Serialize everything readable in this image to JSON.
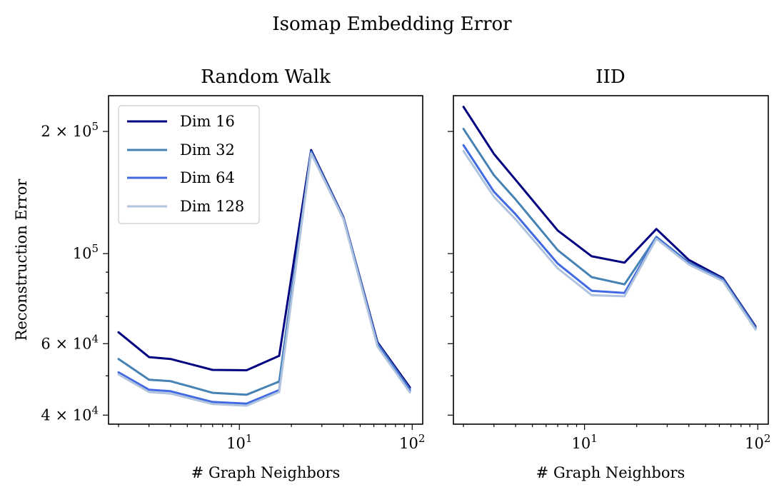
{
  "figure": {
    "title": "Isomap Embedding Error"
  },
  "chart_data": [
    {
      "type": "line",
      "title": "Random Walk",
      "xlabel": "# Graph Neighbors",
      "ylabel": "Reconstruction Error",
      "xscale": "log",
      "yscale": "log",
      "xlim": [
        1.75,
        115
      ],
      "ylim": [
        38000,
        245000
      ],
      "x": [
        2,
        3,
        4,
        7,
        11,
        17,
        26,
        40,
        63,
        97
      ],
      "xticks": [
        {
          "value": 10,
          "base": "10",
          "exp": "1"
        },
        {
          "value": 100,
          "base": "10",
          "exp": "2"
        }
      ],
      "yticks": [
        {
          "value": 40000,
          "mant": "4",
          "exp": "4"
        },
        {
          "value": 60000,
          "mant": "6",
          "exp": "4"
        },
        {
          "value": 100000,
          "mant": "",
          "exp": "5"
        },
        {
          "value": 200000,
          "mant": "2",
          "exp": "5"
        }
      ],
      "legend_position": "top-left",
      "series": [
        {
          "name": "Dim 16",
          "color": "#000080",
          "values": [
            64000,
            55600,
            55000,
            51700,
            51600,
            56000,
            180000,
            123000,
            60500,
            46800
          ]
        },
        {
          "name": "Dim 32",
          "color": "#4682B4",
          "values": [
            55000,
            48900,
            48500,
            45400,
            44900,
            48400,
            178500,
            122500,
            60000,
            46300
          ]
        },
        {
          "name": "Dim 64",
          "color": "#4169E1",
          "values": [
            51000,
            46200,
            45800,
            43100,
            42700,
            46100,
            177500,
            122000,
            59500,
            45900
          ]
        },
        {
          "name": "Dim 128",
          "color": "#B0C4DE",
          "values": [
            50400,
            45600,
            45200,
            42600,
            42200,
            45600,
            176500,
            121600,
            59000,
            45500
          ]
        }
      ]
    },
    {
      "type": "line",
      "title": "IID",
      "xlabel": "# Graph Neighbors",
      "ylabel": "",
      "xscale": "log",
      "yscale": "log",
      "xlim": [
        1.75,
        115
      ],
      "ylim": [
        38000,
        245000
      ],
      "x": [
        2,
        3,
        4,
        7,
        11,
        17,
        26,
        40,
        63,
        97
      ],
      "xticks": [
        {
          "value": 10,
          "base": "10",
          "exp": "1"
        },
        {
          "value": 100,
          "base": "10",
          "exp": "2"
        }
      ],
      "yticks": [
        {
          "value": 40000
        },
        {
          "value": 60000
        },
        {
          "value": 100000
        },
        {
          "value": 200000
        }
      ],
      "series": [
        {
          "name": "Dim 16",
          "color": "#000080",
          "values": [
            230000,
            176000,
            152000,
            114000,
            98500,
            95000,
            115000,
            96500,
            87000,
            66200
          ]
        },
        {
          "name": "Dim 32",
          "color": "#4682B4",
          "values": [
            203000,
            156000,
            136000,
            102000,
            87500,
            84000,
            110000,
            95000,
            86500,
            65800
          ]
        },
        {
          "name": "Dim 64",
          "color": "#4169E1",
          "values": [
            185000,
            142000,
            125000,
            94500,
            81000,
            80000,
            109500,
            94500,
            86000,
            65400
          ]
        },
        {
          "name": "Dim 128",
          "color": "#B0C4DE",
          "values": [
            179000,
            138000,
            121500,
            92000,
            79000,
            78500,
            108800,
            94000,
            85500,
            65000
          ]
        }
      ]
    }
  ]
}
